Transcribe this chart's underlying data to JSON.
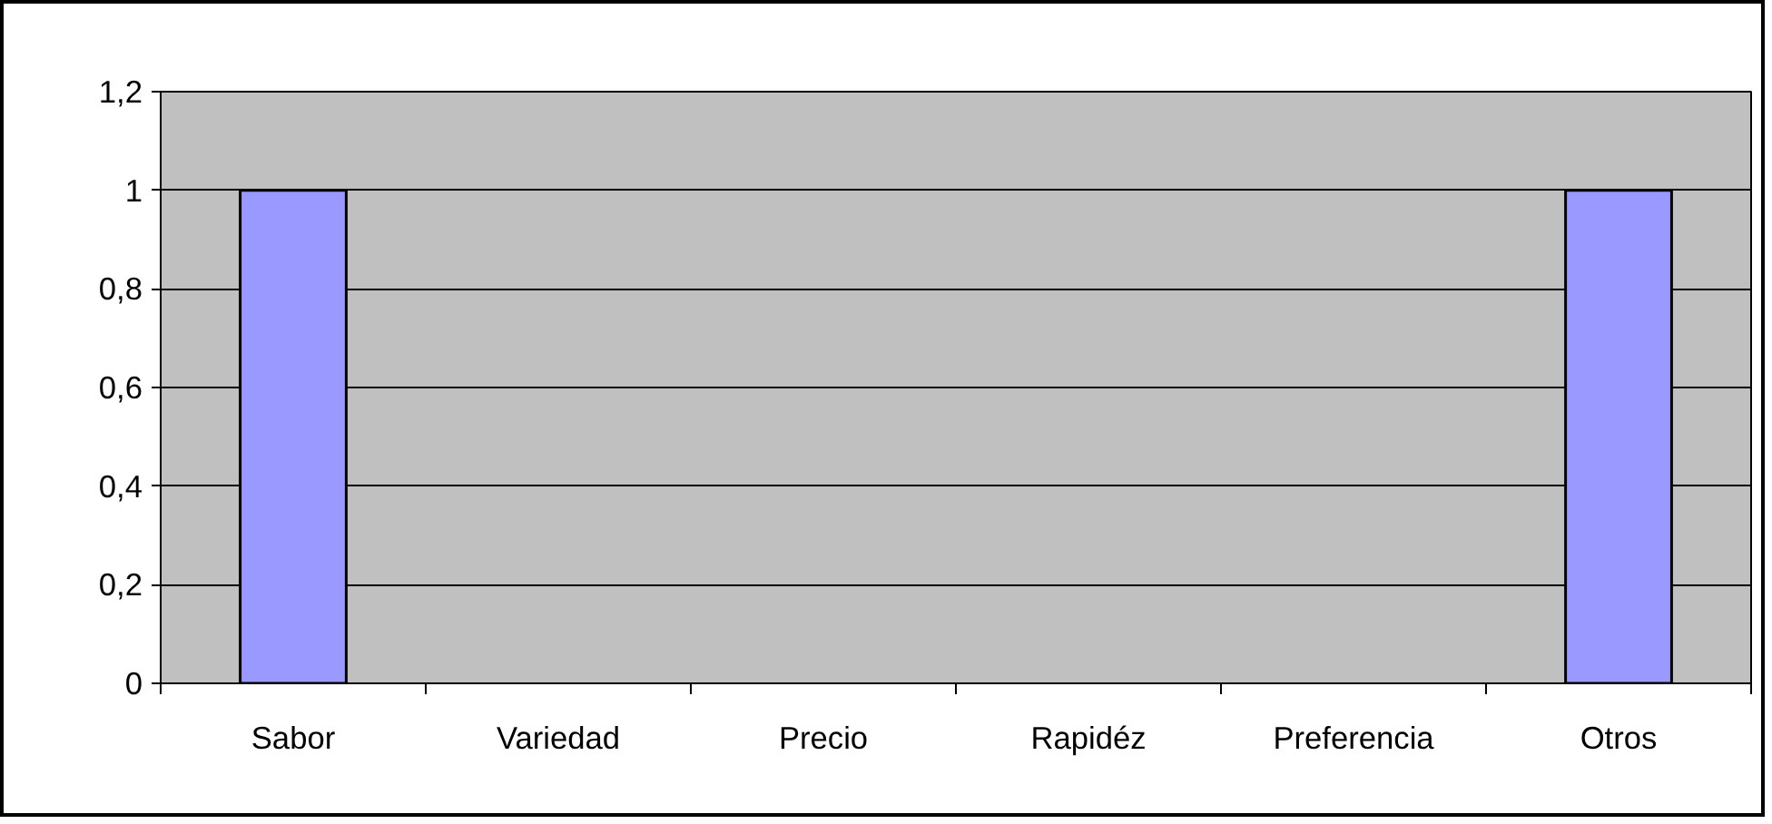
{
  "chart_data": {
    "type": "bar",
    "categories": [
      "Sabor",
      "Variedad",
      "Precio",
      "Rapidéz",
      "Preferencia",
      "Otros"
    ],
    "values": [
      1,
      0,
      0,
      0,
      0,
      1
    ],
    "color": "#9999ff",
    "ylim": [
      0,
      1.2
    ],
    "yticks": [
      0,
      {
        "value": 0.2,
        "label": "0,2"
      },
      {
        "value": 0.4,
        "label": "0,4"
      },
      {
        "value": 0.6,
        "label": "0,6"
      },
      {
        "value": 0.8,
        "label": "0,8"
      },
      1,
      {
        "value": 1.2,
        "label": "1,2"
      }
    ],
    "grid": "y"
  }
}
